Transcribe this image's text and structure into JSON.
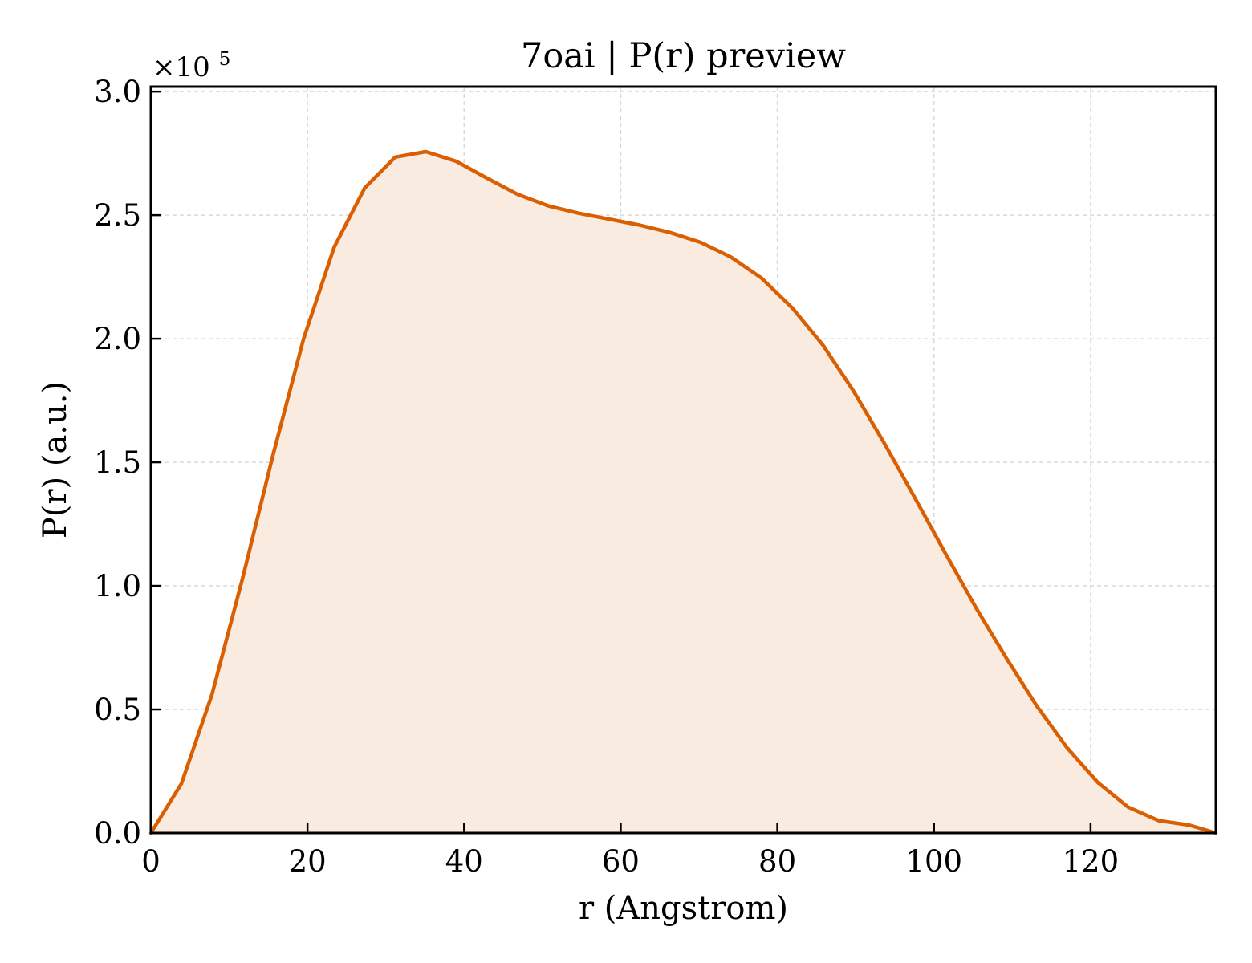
{
  "chart_data": {
    "type": "area",
    "title": "7oai | P(r) preview",
    "xlabel": "r (Angstrom)",
    "ylabel": "P(r) (a.u.)",
    "y_multiplier_label": "×10",
    "y_multiplier_exponent": "5",
    "xlim": [
      0,
      136
    ],
    "ylim": [
      0,
      302000
    ],
    "x_ticks": [
      0,
      20,
      40,
      60,
      80,
      100,
      120
    ],
    "x_tick_labels": [
      "0",
      "20",
      "40",
      "60",
      "80",
      "100",
      "120"
    ],
    "y_ticks": [
      0,
      50000,
      100000,
      150000,
      200000,
      250000,
      300000
    ],
    "y_tick_labels": [
      "0.0",
      "0.5",
      "1.0",
      "1.5",
      "2.0",
      "2.5",
      "3.0"
    ],
    "grid": true,
    "series": [
      {
        "color": "#d95f02",
        "fill_color": "#f9ebe0",
        "x": [
          0,
          3.9,
          7.8,
          11.7,
          15.6,
          19.5,
          23.4,
          27.3,
          31.2,
          35.1,
          39.0,
          42.9,
          46.8,
          50.7,
          54.6,
          58.5,
          62.4,
          66.3,
          70.2,
          74.1,
          78.0,
          81.9,
          85.8,
          89.7,
          93.6,
          97.5,
          101.4,
          105.3,
          109.2,
          113.1,
          117.0,
          120.9,
          124.8,
          128.7,
          132.6,
          136.0
        ],
        "values": [
          0,
          20000,
          56000,
          103000,
          153000,
          200000,
          237000,
          261000,
          273500,
          275700,
          271800,
          265000,
          258500,
          253800,
          250800,
          248400,
          246000,
          243000,
          239000,
          233000,
          224500,
          212500,
          197500,
          179000,
          158000,
          136000,
          113500,
          91500,
          71000,
          51500,
          34500,
          20500,
          10500,
          5000,
          3200,
          0
        ]
      }
    ]
  }
}
